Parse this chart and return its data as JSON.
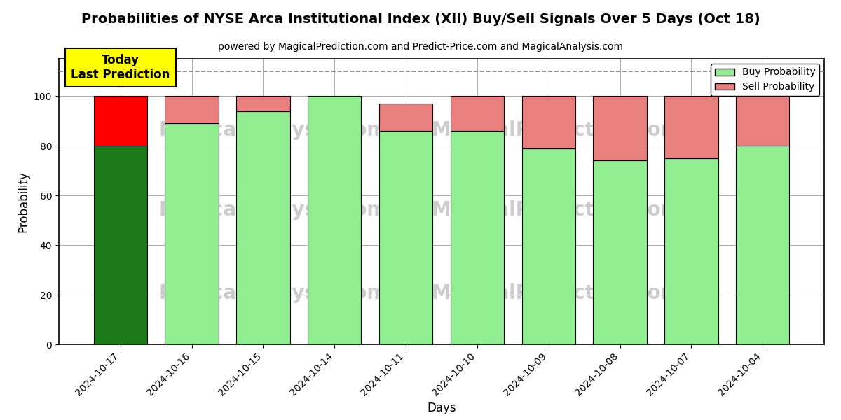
{
  "title": "Probabilities of NYSE Arca Institutional Index (XII) Buy/Sell Signals Over 5 Days (Oct 18)",
  "subtitle": "powered by MagicalPrediction.com and Predict-Price.com and MagicalAnalysis.com",
  "xlabel": "Days",
  "ylabel": "Probability",
  "dates": [
    "2024-10-17",
    "2024-10-16",
    "2024-10-15",
    "2024-10-14",
    "2024-10-11",
    "2024-10-10",
    "2024-10-09",
    "2024-10-08",
    "2024-10-07",
    "2024-10-04"
  ],
  "buy_probs": [
    80,
    89,
    94,
    100,
    86,
    86,
    79,
    74,
    75,
    80
  ],
  "sell_probs": [
    20,
    11,
    6,
    0,
    11,
    14,
    21,
    26,
    25,
    20
  ],
  "today_buy_color": "#1a7a1a",
  "today_sell_color": "#ff0000",
  "other_buy_color": "#90EE90",
  "other_sell_color": "#E88080",
  "today_annotation": "Today\nLast Prediction",
  "annotation_bg": "#ffff00",
  "dashed_line_y": 110,
  "ylim": [
    0,
    115
  ],
  "yticks": [
    0,
    20,
    40,
    60,
    80,
    100
  ],
  "legend_buy": "Buy Probability",
  "legend_sell": "Sell Probability",
  "background_color": "#ffffff",
  "grid_color": "#aaaaaa",
  "bar_edge_color": "#000000",
  "bar_edge_width": 0.8,
  "watermark_color": "#cccccc",
  "title_fontsize": 14,
  "subtitle_fontsize": 10,
  "bar_width": 0.75
}
